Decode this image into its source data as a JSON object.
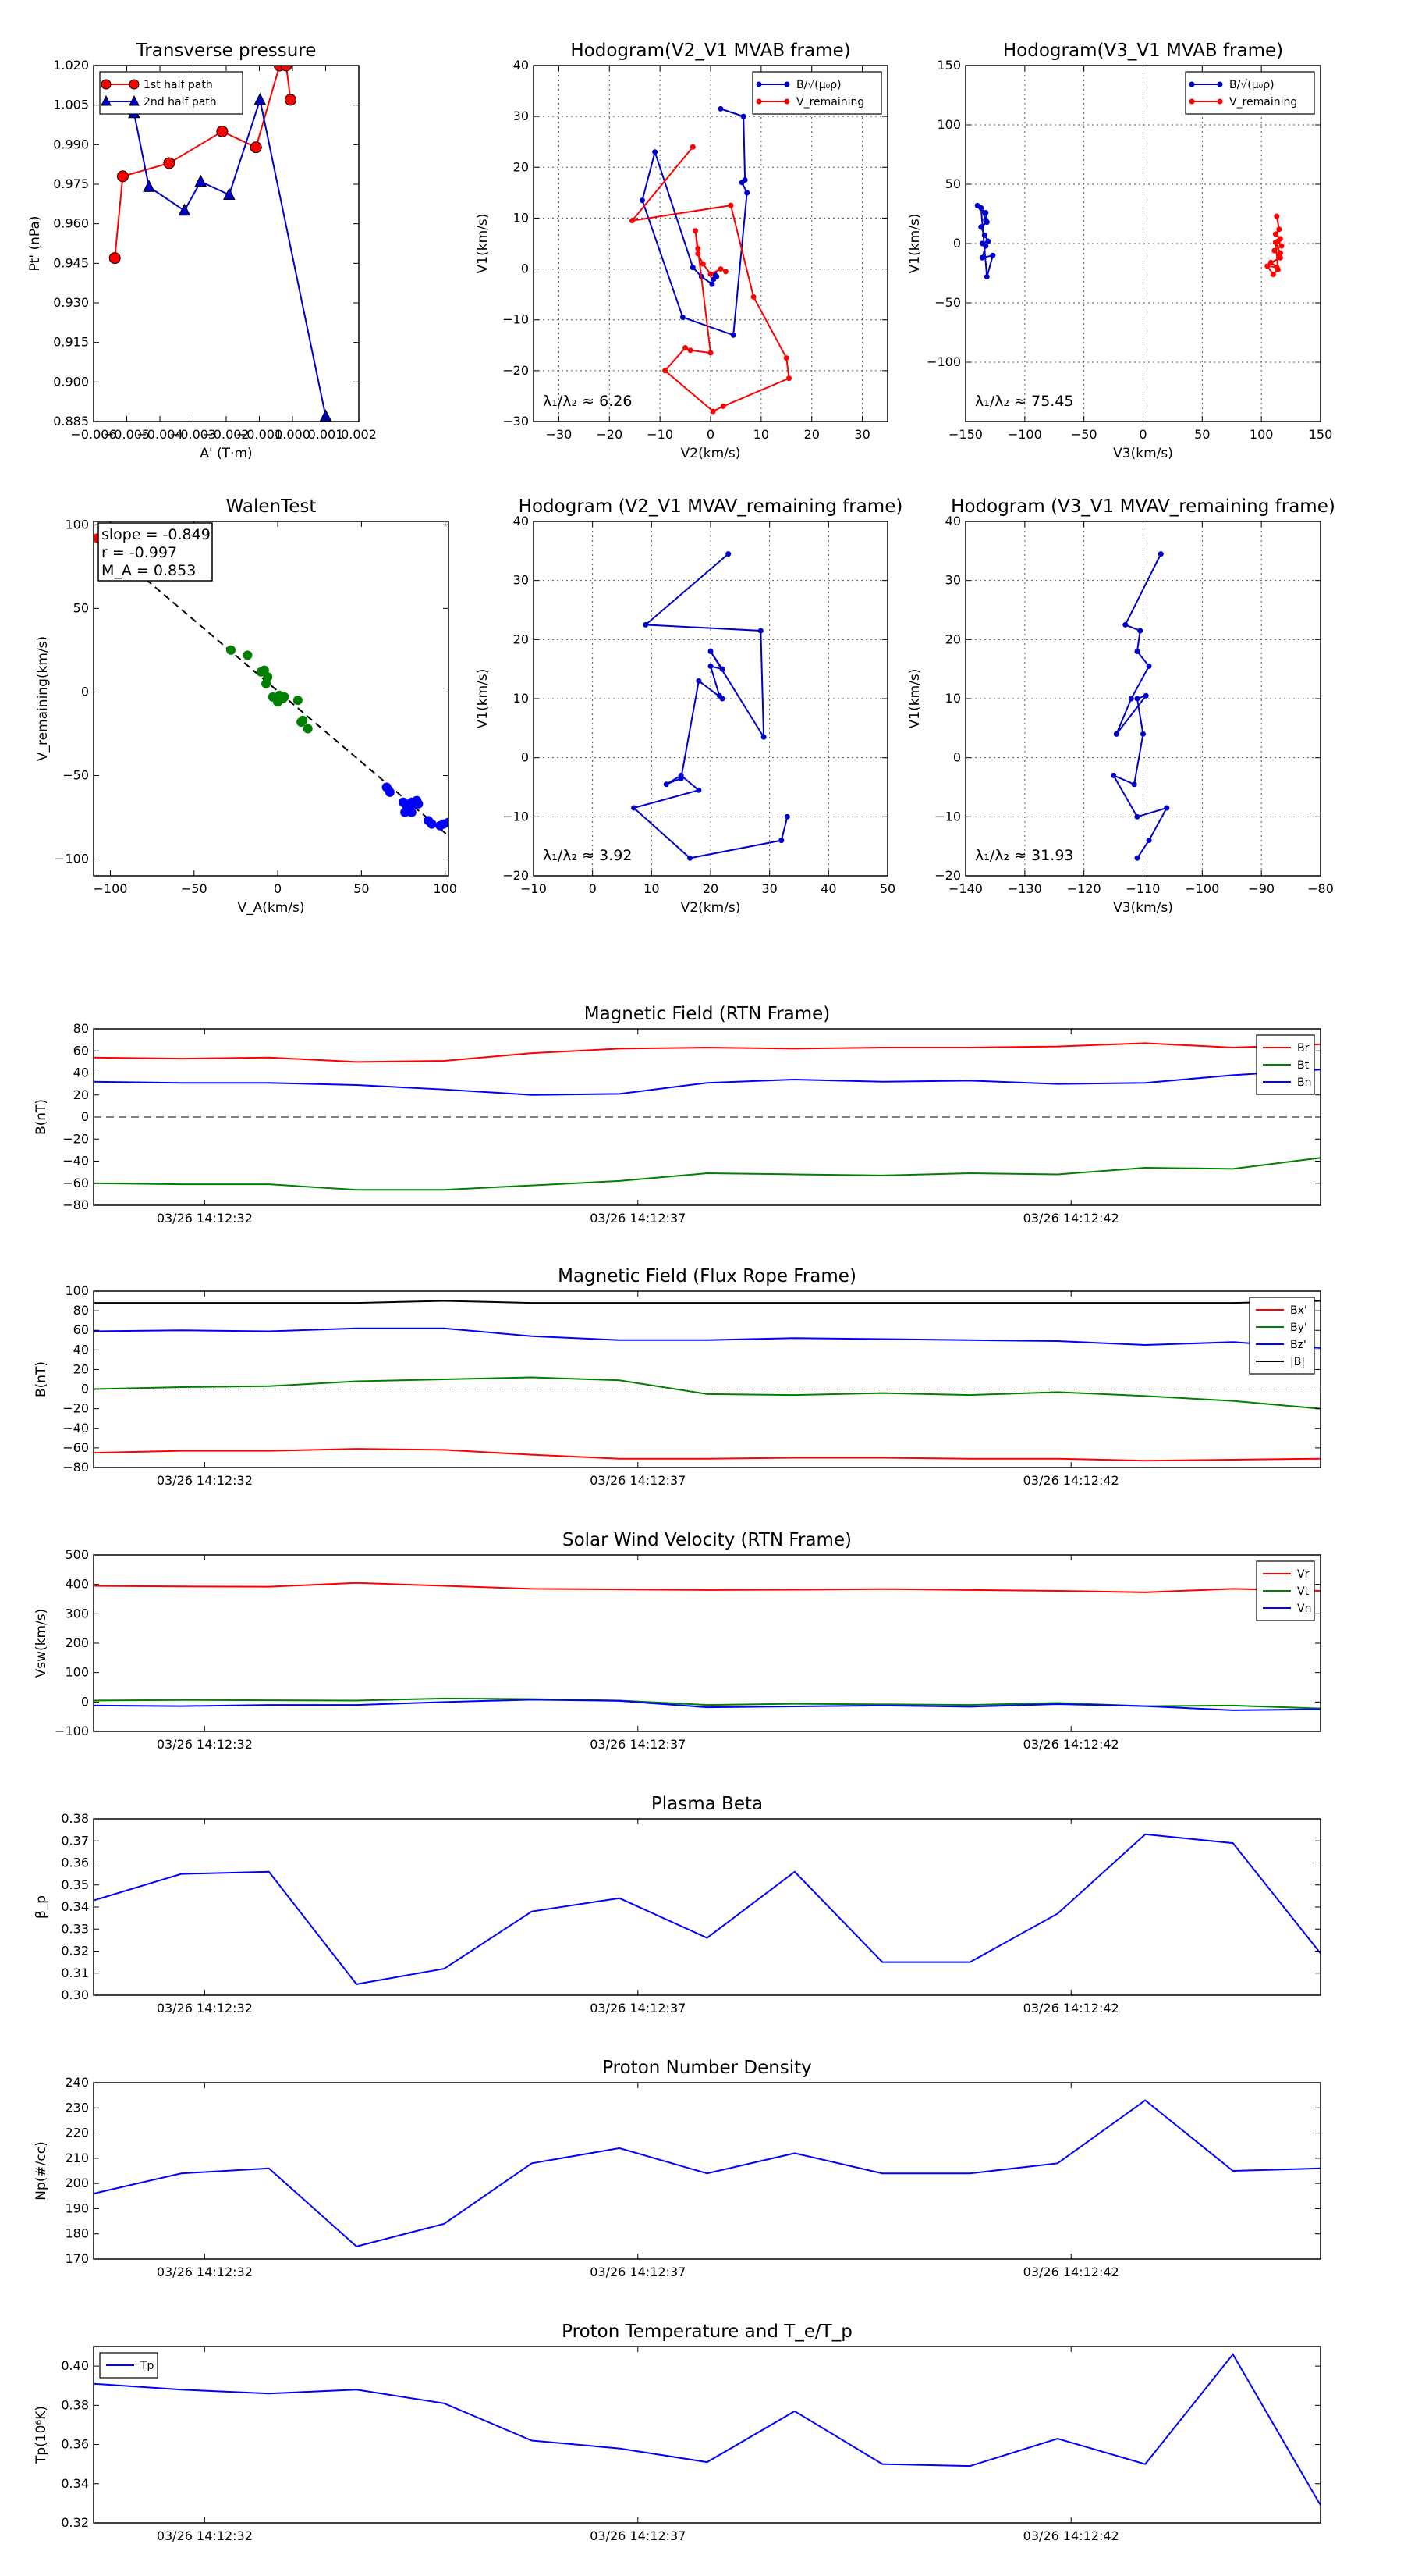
{
  "chart_data": [
    {
      "id": "transverse-pressure",
      "type": "line",
      "title": "Transverse pressure",
      "xlabel": "A' (T·m)",
      "ylabel": "Pt' (nPa)",
      "xlim": [
        -0.006,
        0.002
      ],
      "ylim": [
        0.885,
        1.02
      ],
      "xticks": [
        -0.006,
        -0.005,
        -0.004,
        -0.003,
        -0.002,
        -0.001,
        0.0,
        0.001,
        0.002
      ],
      "xticklabels": [
        "−0.006",
        "−0.005",
        "−0.004",
        "−0.003",
        "−0.002",
        "−0.001",
        "0.000",
        "0.001",
        "0.002"
      ],
      "yticks": [
        0.885,
        0.9,
        0.915,
        0.93,
        0.945,
        0.96,
        0.975,
        0.99,
        1.005,
        1.02
      ],
      "yticklabels": [
        "0.885",
        "0.900",
        "0.915",
        "0.930",
        "0.945",
        "0.960",
        "0.975",
        "0.990",
        "1.005",
        "1.020"
      ],
      "grid": false,
      "legend": "top-left",
      "series": [
        {
          "name": "1st half path",
          "color": "#ff0000",
          "marker": "circle",
          "x": [
            -0.00536,
            -0.00512,
            -0.00372,
            -0.00212,
            -0.0011,
            -0.00039,
            -0.00019,
            -6e-05
          ],
          "y": [
            0.947,
            0.978,
            0.983,
            0.995,
            0.989,
            1.02,
            1.02,
            1.007
          ]
        },
        {
          "name": "2nd half path",
          "color": "#0000cc",
          "marker": "triangle",
          "x": [
            -0.00478,
            -0.00433,
            -0.00326,
            -0.00277,
            -0.00191,
            -0.00098,
            0.001
          ],
          "y": [
            1.002,
            0.974,
            0.965,
            0.976,
            0.971,
            1.007,
            0.887
          ]
        }
      ]
    },
    {
      "id": "hodogram-v2-v1-mvab",
      "type": "line",
      "title": "Hodogram(V2_V1 MVAB frame)",
      "xlabel": "V2(km/s)",
      "ylabel": "V1(km/s)",
      "xlim": [
        -35,
        35
      ],
      "ylim": [
        -30,
        40
      ],
      "xticks": [
        -30,
        -20,
        -10,
        0,
        10,
        20,
        30
      ],
      "yticks": [
        -30,
        -20,
        -10,
        0,
        10,
        20,
        30,
        40
      ],
      "grid": true,
      "legend": "top-right",
      "annotation": "λ₁/λ₂ ≈ 6.26",
      "series": [
        {
          "name": "B/√(μ₀ρ)",
          "color": "#0000cc",
          "x": [
            2,
            6.5,
            6.8,
            6.2,
            7.2,
            4.5,
            -5.5,
            -13.5,
            -11,
            -3.5,
            -1.8,
            0.3,
            0.6,
            1.2,
            0.8
          ],
          "y": [
            31.5,
            30,
            17.5,
            17,
            15,
            -13,
            -9.5,
            13.5,
            23,
            0.3,
            -1.5,
            -3,
            -2,
            -1.5,
            -1
          ]
        },
        {
          "name": "V_remaining",
          "color": "#ff0000",
          "x": [
            -3.5,
            -15.5,
            4,
            8.5,
            15,
            15.5,
            2.5,
            0.5,
            -9,
            -5,
            -4,
            0,
            -2.5,
            -3,
            -2.5,
            -1.5,
            0,
            2,
            3
          ],
          "y": [
            24,
            9.5,
            12.5,
            -5.5,
            -17.5,
            -21.5,
            -27,
            -28,
            -20,
            -15.5,
            -16,
            -16.5,
            4,
            7.5,
            3,
            1,
            -1,
            0,
            -0.5
          ]
        }
      ]
    },
    {
      "id": "hodogram-v3-v1-mvab",
      "type": "line",
      "title": "Hodogram(V3_V1 MVAB frame)",
      "xlabel": "V3(km/s)",
      "ylabel": "V1(km/s)",
      "xlim": [
        -150,
        150
      ],
      "ylim": [
        -150,
        150
      ],
      "xticks": [
        -150,
        -100,
        -50,
        0,
        50,
        100,
        150
      ],
      "yticks": [
        -100,
        -50,
        0,
        50,
        100,
        150
      ],
      "grid": true,
      "legend": "top-right",
      "annotation": "λ₁/λ₂ ≈ 75.45",
      "series": [
        {
          "name": "B/√(μ₀ρ)",
          "color": "#0000cc",
          "x": [
            -140,
            -133,
            -132,
            -137,
            -134,
            -131,
            -136,
            -133,
            -136,
            -127,
            -132,
            -137,
            -133
          ],
          "y": [
            32,
            26,
            18,
            14,
            7,
            2,
            0,
            -2,
            -12,
            -10,
            -28,
            30,
            20
          ]
        },
        {
          "name": "V_remaining",
          "color": "#ff0000",
          "x": [
            113,
            115,
            112,
            116,
            114,
            117,
            111,
            116,
            108,
            113,
            105,
            110,
            114,
            112,
            116
          ],
          "y": [
            23,
            12,
            8,
            4,
            2,
            -2,
            -6,
            -12,
            -16,
            -20,
            -19,
            -26,
            -22,
            1,
            -8
          ]
        }
      ]
    },
    {
      "id": "walen-test",
      "type": "scatter",
      "title": "WalenTest",
      "xlabel": "V_A(km/s)",
      "ylabel": "V_remaining(km/s)",
      "xlim": [
        -110,
        102
      ],
      "ylim": [
        -110,
        102
      ],
      "xticks": [
        -100,
        -50,
        0,
        50,
        100
      ],
      "yticks": [
        -100,
        -50,
        0,
        50,
        100
      ],
      "grid": false,
      "stats": {
        "slope": "slope = -0.849",
        "r": "r = -0.997",
        "ma": "M_A = 0.853"
      },
      "fit_line": {
        "x": [
          -100,
          102
        ],
        "y": [
          85.4,
          -86.1
        ]
      },
      "series": [
        {
          "name": "green",
          "color": "#008000",
          "x": [
            -28,
            -18,
            -10,
            -8,
            -6,
            -7,
            -3,
            1,
            3,
            0,
            4,
            12,
            15,
            18,
            14
          ],
          "y": [
            25,
            22,
            12,
            13,
            9,
            5,
            -3,
            -2,
            -4,
            -6,
            -3,
            -5,
            -17,
            -22,
            -18
          ]
        },
        {
          "name": "blue",
          "color": "#0000ff",
          "x": [
            65,
            67,
            75,
            77,
            78,
            80,
            82,
            84,
            83,
            80,
            90,
            92,
            97,
            99,
            102,
            76,
            79
          ],
          "y": [
            -57,
            -60,
            -66,
            -68,
            -70,
            -66,
            -66,
            -67,
            -65,
            -72,
            -77,
            -79,
            -80,
            -79,
            -78,
            -72,
            -70
          ]
        },
        {
          "name": "red",
          "color": "#ff0000",
          "x": [
            -108
          ],
          "y": [
            92
          ]
        }
      ]
    },
    {
      "id": "hodogram-v2-v1-mvav",
      "type": "line",
      "title": "Hodogram (V2_V1 MVAV_remaining frame)",
      "xlabel": "V2(km/s)",
      "ylabel": "V1(km/s)",
      "xlim": [
        -10,
        50
      ],
      "ylim": [
        -20,
        40
      ],
      "xticks": [
        -10,
        0,
        10,
        20,
        30,
        40,
        50
      ],
      "yticks": [
        -20,
        -10,
        0,
        10,
        20,
        30,
        40
      ],
      "grid": true,
      "annotation": "λ₁/λ₂ ≈ 3.92",
      "series": [
        {
          "name": "V",
          "color": "#0000cc",
          "x": [
            23,
            9,
            28.5,
            29,
            20,
            22,
            20,
            21.5,
            22,
            18,
            15,
            12.5,
            15,
            18,
            7,
            16.5,
            32,
            33
          ],
          "y": [
            34.5,
            22.5,
            21.5,
            3.5,
            18,
            15,
            15.5,
            10.5,
            10,
            13,
            -3.5,
            -4.5,
            -3,
            -5.5,
            -8.5,
            -17,
            -14,
            -10
          ]
        }
      ]
    },
    {
      "id": "hodogram-v3-v1-mvav",
      "type": "line",
      "title": "Hodogram (V3_V1 MVAV_remaining frame)",
      "xlabel": "V3(km/s)",
      "ylabel": "V1(km/s)",
      "xlim": [
        -140,
        -80
      ],
      "ylim": [
        -20,
        40
      ],
      "xticks": [
        -140,
        -130,
        -120,
        -110,
        -100,
        -90,
        -80
      ],
      "yticks": [
        -20,
        -10,
        0,
        10,
        20,
        30,
        40
      ],
      "grid": true,
      "annotation": "λ₁/λ₂ ≈ 31.93",
      "series": [
        {
          "name": "V",
          "color": "#0000cc",
          "x": [
            -107,
            -113,
            -110.5,
            -111,
            -109,
            -112,
            -114.5,
            -109.5,
            -111,
            -110,
            -111.5,
            -115,
            -111,
            -106,
            -109,
            -111
          ],
          "y": [
            34.5,
            22.5,
            21.5,
            18,
            15.5,
            10,
            4,
            10.5,
            10,
            4,
            -4.5,
            -3,
            -10,
            -8.5,
            -14,
            -17
          ]
        }
      ]
    },
    {
      "id": "magnetic-field-rtn",
      "type": "line",
      "title": "Magnetic Field (RTN Frame)",
      "ylabel": "B(nT)",
      "ylim": [
        -80,
        80
      ],
      "yticks": [
        -80,
        -60,
        -40,
        -20,
        0,
        20,
        40,
        60,
        80
      ],
      "xticklabels": [
        "03/26 14:12:32",
        "03/26 14:12:37",
        "03/26 14:12:42"
      ],
      "grid": false,
      "zero_line": true,
      "series": [
        {
          "name": "Br",
          "color": "#ff0000",
          "values": [
            54,
            53,
            54,
            50,
            51,
            58,
            62,
            63,
            62,
            63,
            63,
            64,
            67,
            63,
            66
          ]
        },
        {
          "name": "Bt",
          "color": "#008000",
          "values": [
            -60,
            -61,
            -61,
            -66,
            -66,
            -62,
            -58,
            -51,
            -52,
            -53,
            -51,
            -52,
            -46,
            -47,
            -37
          ]
        },
        {
          "name": "Bn",
          "color": "#0000ff",
          "values": [
            32,
            31,
            31,
            29,
            25,
            20,
            21,
            31,
            34,
            32,
            33,
            30,
            31,
            38,
            43
          ]
        }
      ]
    },
    {
      "id": "magnetic-field-flux-rope",
      "type": "line",
      "title": "Magnetic Field (Flux Rope Frame)",
      "ylabel": "B(nT)",
      "ylim": [
        -80,
        100
      ],
      "yticks": [
        -80,
        -60,
        -40,
        -20,
        0,
        20,
        40,
        60,
        80,
        100
      ],
      "xticklabels": [
        "03/26 14:12:32",
        "03/26 14:12:37",
        "03/26 14:12:42"
      ],
      "grid": false,
      "zero_line": true,
      "series": [
        {
          "name": "Bx'",
          "color": "#ff0000",
          "values": [
            -65,
            -63,
            -63,
            -61,
            -62,
            -67,
            -71,
            -71,
            -70,
            -70,
            -71,
            -71,
            -73,
            -72,
            -71
          ]
        },
        {
          "name": "By'",
          "color": "#008000",
          "values": [
            0,
            2,
            3,
            8,
            10,
            12,
            9,
            -5,
            -6,
            -4,
            -6,
            -3,
            -7,
            -12,
            -20
          ]
        },
        {
          "name": "Bz'",
          "color": "#0000ff",
          "values": [
            59,
            60,
            59,
            62,
            62,
            54,
            50,
            50,
            52,
            51,
            50,
            49,
            45,
            48,
            42
          ]
        },
        {
          "name": "|B|",
          "color": "#000000",
          "values": [
            88,
            88,
            88,
            88,
            90,
            88,
            88,
            88,
            88,
            88,
            88,
            88,
            88,
            88,
            90
          ]
        }
      ]
    },
    {
      "id": "solar-wind-velocity",
      "type": "line",
      "title": "Solar Wind Velocity (RTN Frame)",
      "ylabel": "Vsw(km/s)",
      "ylim": [
        -100,
        500
      ],
      "yticks": [
        -100,
        0,
        100,
        200,
        300,
        400,
        500
      ],
      "xticklabels": [
        "03/26 14:12:32",
        "03/26 14:12:37",
        "03/26 14:12:42"
      ],
      "grid": false,
      "series": [
        {
          "name": "Vr",
          "color": "#ff0000",
          "values": [
            395,
            393,
            392,
            405,
            395,
            385,
            383,
            381,
            382,
            384,
            381,
            378,
            373,
            385,
            378
          ]
        },
        {
          "name": "Vt",
          "color": "#008000",
          "values": [
            5,
            7,
            6,
            5,
            12,
            10,
            5,
            -10,
            -6,
            -8,
            -10,
            -3,
            -14,
            -12,
            -22
          ]
        },
        {
          "name": "Vn",
          "color": "#0000ff",
          "values": [
            -12,
            -14,
            -10,
            -10,
            0,
            8,
            4,
            -18,
            -15,
            -12,
            -16,
            -7,
            -14,
            -28,
            -25
          ]
        }
      ]
    },
    {
      "id": "plasma-beta",
      "type": "line",
      "title": "Plasma Beta",
      "ylabel": "β_p",
      "ylim": [
        0.3,
        0.38
      ],
      "yticks": [
        0.3,
        0.31,
        0.32,
        0.33,
        0.34,
        0.35,
        0.36,
        0.37,
        0.38
      ],
      "yticklabels": [
        "0.30",
        "0.31",
        "0.32",
        "0.33",
        "0.34",
        "0.35",
        "0.36",
        "0.37",
        "0.38"
      ],
      "xticklabels": [
        "03/26 14:12:32",
        "03/26 14:12:37",
        "03/26 14:12:42"
      ],
      "grid": false,
      "series": [
        {
          "name": "beta",
          "color": "#0000ff",
          "values": [
            0.343,
            0.355,
            0.356,
            0.305,
            0.312,
            0.338,
            0.344,
            0.326,
            0.356,
            0.315,
            0.315,
            0.337,
            0.373,
            0.369,
            0.319
          ]
        }
      ]
    },
    {
      "id": "proton-number-density",
      "type": "line",
      "title": "Proton Number Density",
      "ylabel": "Np(#/cc)",
      "ylim": [
        170,
        240
      ],
      "yticks": [
        170,
        180,
        190,
        200,
        210,
        220,
        230,
        240
      ],
      "xticklabels": [
        "03/26 14:12:32",
        "03/26 14:12:37",
        "03/26 14:12:42"
      ],
      "grid": false,
      "series": [
        {
          "name": "Np",
          "color": "#0000ff",
          "values": [
            196,
            204,
            206,
            175,
            184,
            208,
            214,
            204,
            212,
            204,
            204,
            208,
            233,
            205,
            206
          ]
        }
      ]
    },
    {
      "id": "proton-temperature",
      "type": "line",
      "title": "Proton Temperature and T_e/T_p",
      "ylabel": "Tp(10⁶K)",
      "ylim": [
        0.32,
        0.41
      ],
      "yticks": [
        0.32,
        0.34,
        0.36,
        0.38,
        0.4
      ],
      "yticklabels": [
        "0.32",
        "0.34",
        "0.36",
        "0.38",
        "0.40"
      ],
      "xticklabels": [
        "03/26 14:12:32",
        "03/26 14:12:37",
        "03/26 14:12:42"
      ],
      "grid": false,
      "legend": "top-left",
      "series": [
        {
          "name": "Tp",
          "color": "#0000ff",
          "values": [
            0.391,
            0.388,
            0.386,
            0.388,
            0.381,
            0.362,
            0.358,
            0.351,
            0.377,
            0.35,
            0.349,
            0.363,
            0.35,
            0.406,
            0.329
          ]
        }
      ]
    }
  ]
}
